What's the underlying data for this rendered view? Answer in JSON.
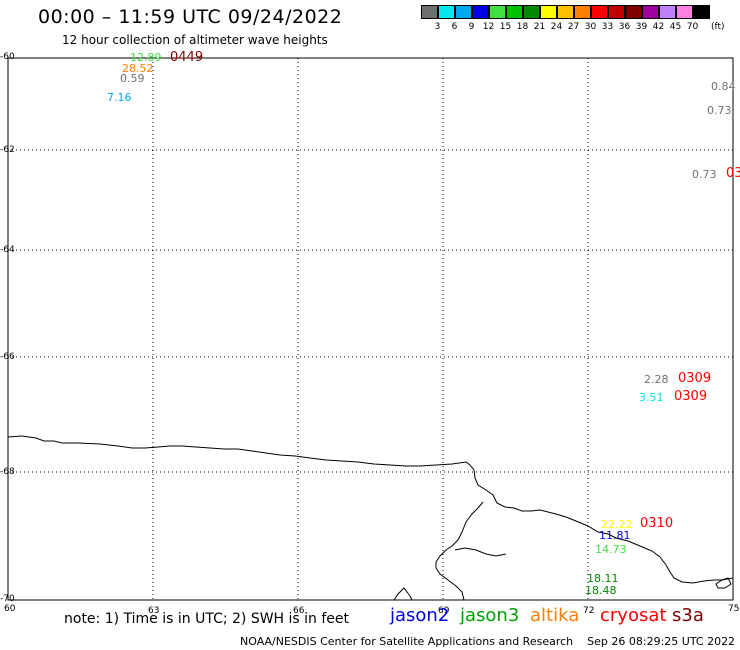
{
  "header": {
    "title": "00:00 – 11:59 UTC 09/24/2022",
    "subtitle": "12 hour collection of altimeter wave heights"
  },
  "scale": {
    "swatches": [
      {
        "label": "3",
        "color": "#707070"
      },
      {
        "label": "6",
        "color": "#00e8e8"
      },
      {
        "label": "9",
        "color": "#00a8f0"
      },
      {
        "label": "12",
        "color": "#0000e0"
      },
      {
        "label": "15",
        "color": "#40e040"
      },
      {
        "label": "18",
        "color": "#00c000"
      },
      {
        "label": "21",
        "color": "#008800"
      },
      {
        "label": "24",
        "color": "#ffff00"
      },
      {
        "label": "27",
        "color": "#ffc000"
      },
      {
        "label": "30",
        "color": "#ff8000"
      },
      {
        "label": "33",
        "color": "#ff0000"
      },
      {
        "label": "36",
        "color": "#c00000"
      },
      {
        "label": "39",
        "color": "#800000"
      },
      {
        "label": "42",
        "color": "#a000a0"
      },
      {
        "label": "45",
        "color": "#c080ff"
      },
      {
        "label": "70",
        "color": "#ff80e0"
      },
      {
        "label": "",
        "color": "#000000"
      }
    ],
    "unit": "(ft)"
  },
  "map": {
    "lat_labels": [
      "-60",
      "-62",
      "-64",
      "-66",
      "-68",
      "-70"
    ],
    "lon_labels": [
      "60",
      "63",
      "66",
      "69",
      "72",
      "75"
    ]
  },
  "wave_heights": [
    {
      "text": "12.89",
      "color": "#40e040"
    },
    {
      "text": "28.52",
      "color": "#ff8000"
    },
    {
      "text": "0.59",
      "color": "#707070"
    },
    {
      "text": "7.16",
      "color": "#00a8f0"
    },
    {
      "text": "0.84",
      "color": "#707070"
    },
    {
      "text": "0.73",
      "color": "#707070"
    },
    {
      "text": "0.73",
      "color": "#707070"
    },
    {
      "text": "2.28",
      "color": "#707070"
    },
    {
      "text": "3.51",
      "color": "#00e8e8"
    },
    {
      "text": "22.22",
      "color": "#ffff00"
    },
    {
      "text": "11.81",
      "color": "#0000e0"
    },
    {
      "text": "14.73",
      "color": "#40e040"
    },
    {
      "text": "18.11",
      "color": "#008800"
    },
    {
      "text": "18.48",
      "color": "#008800"
    }
  ],
  "pass_times": [
    {
      "text": "0449",
      "color": "#800000"
    },
    {
      "text": "03",
      "color": "#ff0000"
    },
    {
      "text": "0309",
      "color": "#ff0000"
    },
    {
      "text": "0309",
      "color": "#ff0000"
    },
    {
      "text": "0310",
      "color": "#ff0000"
    }
  ],
  "footer": {
    "note": "note: 1) Time is in UTC; 2) SWH is in feet",
    "missions": [
      {
        "name": "jason2",
        "color": "#0000e0"
      },
      {
        "name": "jason3",
        "color": "#00a000"
      },
      {
        "name": "altika",
        "color": "#ff8000"
      },
      {
        "name": "cryosat",
        "color": "#ff0000"
      },
      {
        "name": "s3a",
        "color": "#800000"
      }
    ],
    "credit": "NOAA/NESDIS Center for Satellite Applications and Research",
    "timestamp": "Sep 26 08:29:25 UTC 2022"
  }
}
